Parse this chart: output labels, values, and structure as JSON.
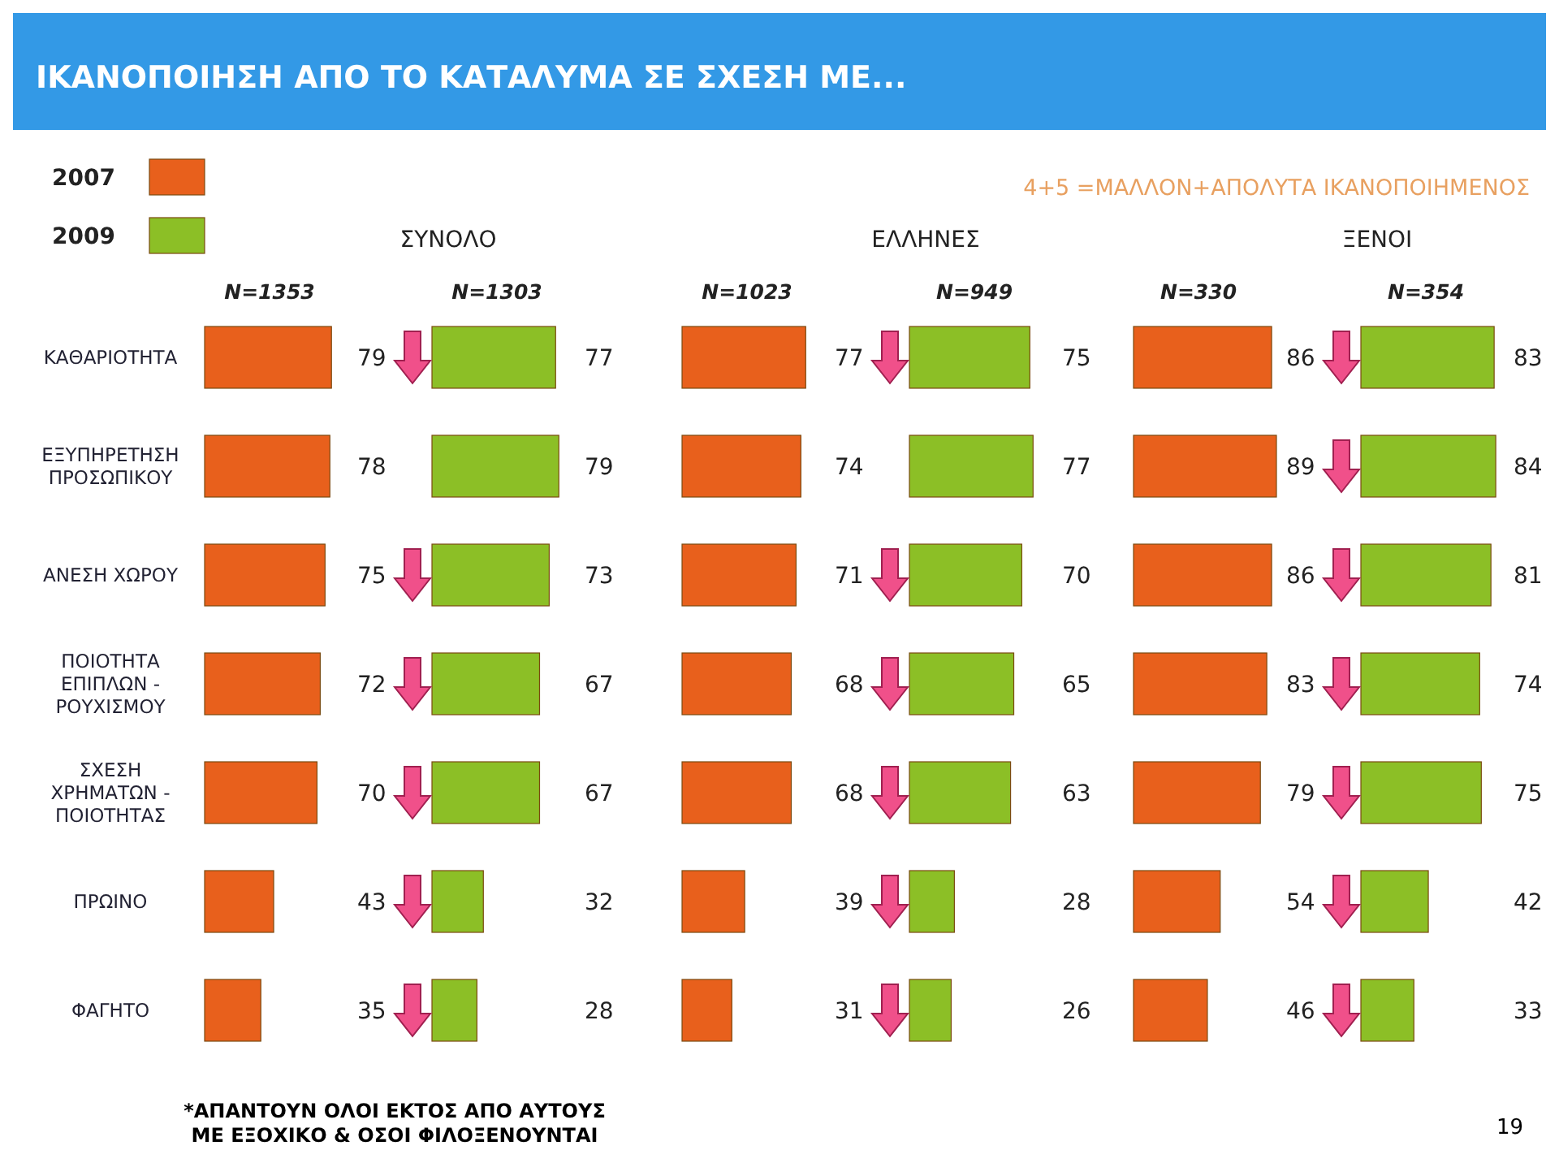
{
  "chart_data": [
    {
      "type": "other",
      "title": "ΙΚΑΝΟΠΟΙΗΣΗ ΑΠΟ ΤΟ ΚΑΤΑΛΥΜΑ ΣΕ ΣΧΕΣΗ ΜΕ...",
      "subtitle": "4+5 =ΜΑΛΛΟΝ+ΑΠΟΛΥΤΑ ΙΚΑΝΟΠΟΙΗΜΕΝΟΣ",
      "annotations": [
        "ΣΥΝΟΛΟ",
        "ΕΛΛΗΝΕΣ",
        "ΞΕΝΟΙ",
        "*ΑΠΑΝΤΟΥΝ ΟΛΟΙ ΕΚΤΟΣ ΑΠΟ ΑΥΤΟΥΣ ΜΕ ΕΞΟΧΙΚΟ & ΟΣΟΙ ΦΙΛΟΞΕΝΟΥΝΤΑΙ",
        "19"
      ]
    },
    {
      "type": "bar",
      "orientation": "horizontal",
      "annotations": [
        "N=1353"
      ],
      "data_labels": true,
      "legend": "top left",
      "categories": [
        "ΚΑΘΑΡΙΟΤΗΤΑ",
        "ΕΞΥΠΗΡΕΤΗΣΗ ΠΡΟΣΩΠΙΚΟΥ",
        "ΑΝΕΣΗ ΧΩΡΟΥ",
        "ΠΟΙΟΤΗΤΑ ΕΠΙΠΛΩΝ - ΡΟΥΧΙΣΜΟΥ",
        "ΣΧΕΣΗ ΧΡΗΜΑΤΩΝ - ΠΟΙΟΤΗΤΑΣ",
        "ΠΡΩΙΝΟ",
        "ΦΑΓΗΤΟ"
      ],
      "series": [
        {
          "name": "2007",
          "color": "#e8601c",
          "values": [
            79,
            78,
            75,
            72,
            70,
            43,
            35
          ]
        }
      ]
    },
    {
      "type": "bar",
      "orientation": "horizontal",
      "annotations": [
        "N=1303"
      ],
      "data_labels": true,
      "legend": "top left",
      "series": [
        {
          "name": "2009",
          "color": "#8cbf26",
          "values": [
            77,
            79,
            73,
            67,
            67,
            32,
            28
          ]
        }
      ]
    },
    {
      "type": "bar",
      "orientation": "horizontal",
      "annotations": [
        "N=1023"
      ],
      "data_labels": true,
      "series": [
        {
          "color": "#e8601c",
          "values": [
            77,
            74,
            71,
            68,
            68,
            39,
            31
          ]
        }
      ]
    },
    {
      "type": "bar",
      "orientation": "horizontal",
      "annotations": [
        "N=949"
      ],
      "data_labels": true,
      "series": [
        {
          "color": "#8cbf26",
          "values": [
            75,
            77,
            70,
            65,
            63,
            28,
            26
          ]
        }
      ]
    },
    {
      "type": "bar",
      "orientation": "horizontal",
      "annotations": [
        "N=330"
      ],
      "data_labels": true,
      "series": [
        {
          "color": "#e8601c",
          "values": [
            86,
            89,
            86,
            83,
            79,
            54,
            46
          ]
        }
      ]
    },
    {
      "type": "bar",
      "orientation": "horizontal",
      "annotations": [
        "N=354"
      ],
      "data_labels": true,
      "series": [
        {
          "color": "#8cbf26",
          "values": [
            83,
            84,
            81,
            74,
            75,
            42,
            33
          ]
        }
      ]
    }
  ]
}
